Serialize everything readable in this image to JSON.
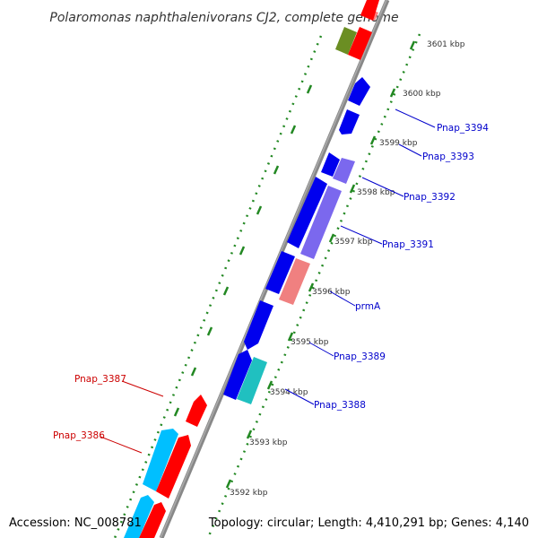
{
  "title": "Polaromonas naphthalenivorans CJ2, complete genome",
  "footer": {
    "accession": "Accession: NC_008781",
    "topology": "Topology: circular; Length: 4,410,291 bp; Genes: 4,140"
  },
  "scale_labels": [
    "3601 kbp",
    "3600 kbp",
    "3599 kbp",
    "3598 kbp",
    "3597 kbp",
    "3596 kbp",
    "3595 kbp",
    "3594 kbp",
    "3593 kbp",
    "3592 kbp"
  ],
  "genes_forward_labels": [
    "Pnap_3394",
    "Pnap_3393",
    "Pnap_3392",
    "Pnap_3391",
    "prmA",
    "Pnap_3389",
    "Pnap_3388"
  ],
  "genes_reverse_labels": [
    "Pnap_3387",
    "Pnap_3386"
  ],
  "colors": {
    "backbone": "#888888",
    "scale_ticks": "#228822",
    "label_blue": "#0000cc",
    "label_red": "#cc0000",
    "gene_blue": "#0000ee",
    "gene_purple": "#7b68ee",
    "gene_salmon": "#f08080",
    "gene_teal": "#20c0c0",
    "gene_red": "#ff0000",
    "gene_cyan": "#00bfff",
    "gene_olive": "#6b8e23"
  }
}
